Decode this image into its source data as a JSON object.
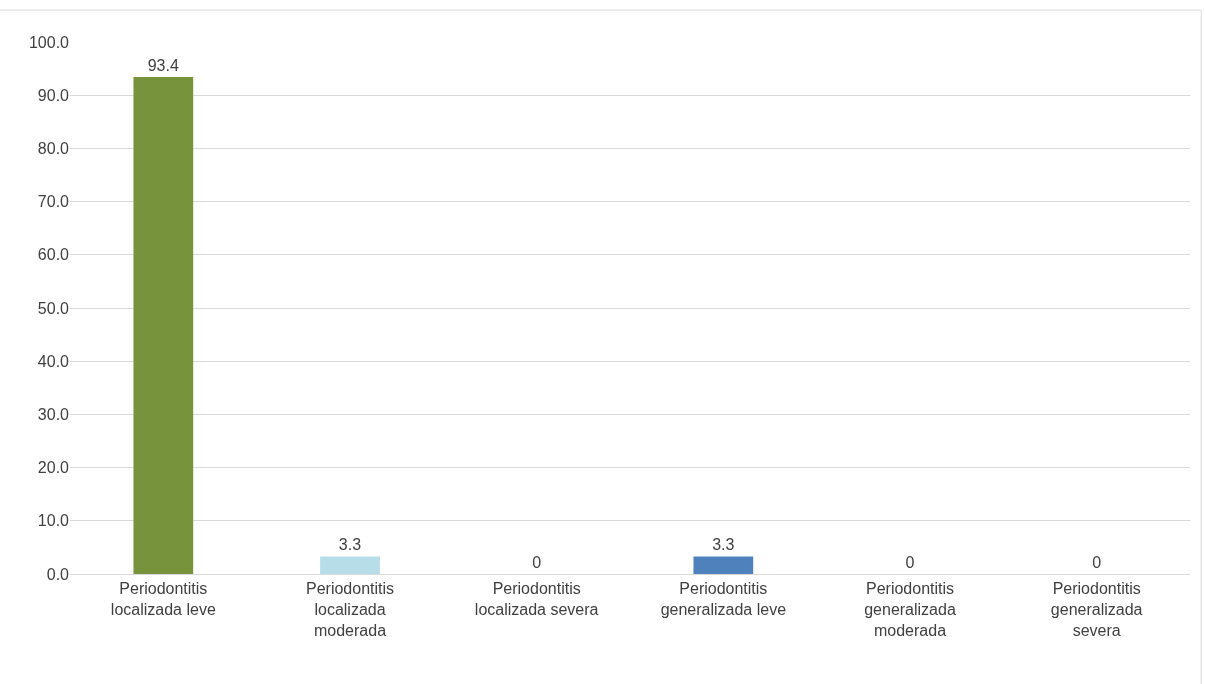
{
  "chart_data": {
    "type": "bar",
    "categories": [
      "Periodontitis localizada leve",
      "Periodontitis localizada moderada",
      "Periodontitis localizada severa",
      "Periodontitis generalizada leve",
      "Periodontitis generalizada moderada",
      "Periodontitis generalizada severa"
    ],
    "values": [
      93.4,
      3.3,
      0,
      3.3,
      0,
      0
    ],
    "colors": [
      "#77933c",
      "#b7dde8",
      "#9bbb59",
      "#4f81bd",
      "#c0504d",
      "#8064a2"
    ],
    "ylim": [
      0,
      100
    ],
    "yticks": [
      {
        "value": 0,
        "label": "0.0"
      },
      {
        "value": 10,
        "label": "10.0"
      },
      {
        "value": 20,
        "label": "20.0"
      },
      {
        "value": 30,
        "label": "30.0"
      },
      {
        "value": 40,
        "label": "40.0"
      },
      {
        "value": 50,
        "label": "50.0"
      },
      {
        "value": 60,
        "label": "60.0"
      },
      {
        "value": 70,
        "label": "70.0"
      },
      {
        "value": 80,
        "label": "80.0"
      },
      {
        "value": 90,
        "label": "90.0"
      },
      {
        "value": 100,
        "label": "100.0"
      }
    ],
    "grid": "y",
    "data_labels": true
  }
}
